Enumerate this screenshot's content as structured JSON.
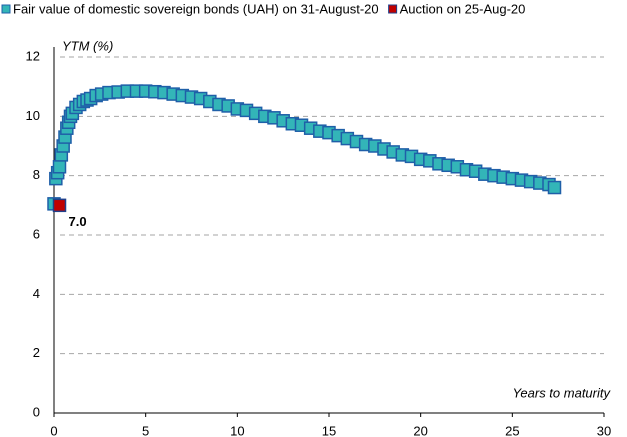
{
  "chart_data": {
    "type": "scatter",
    "ylabel": "YTM (%)",
    "xlabel": "Years to maturity",
    "xlim": [
      0,
      30
    ],
    "xticks": [
      0,
      5,
      10,
      15,
      20,
      25,
      30
    ],
    "ylim": [
      0,
      12
    ],
    "yticks": [
      0,
      2,
      4,
      6,
      8,
      10,
      12
    ],
    "grid": true,
    "legend": "top",
    "series": [
      {
        "name": "Fair value of domestic sovereign bonds (UAH) on 31-August-20",
        "color": "#33b5b8",
        "edge": "#1f5fa8",
        "x": [
          0.0,
          0.1,
          0.2,
          0.3,
          0.4,
          0.5,
          0.6,
          0.7,
          0.8,
          0.9,
          1.0,
          1.2,
          1.4,
          1.6,
          1.8,
          2.0,
          2.3,
          2.6,
          3.0,
          3.5,
          4.0,
          4.5,
          5.0,
          5.5,
          6.0,
          6.5,
          7.0,
          7.5,
          8.0,
          8.5,
          9.0,
          9.5,
          10.0,
          10.5,
          11.0,
          11.5,
          12.0,
          12.5,
          13.0,
          13.5,
          14.0,
          14.5,
          15.0,
          15.5,
          16.0,
          16.5,
          17.0,
          17.5,
          18.0,
          18.5,
          19.0,
          19.5,
          20.0,
          20.5,
          21.0,
          21.5,
          22.0,
          22.5,
          23.0,
          23.5,
          24.0,
          24.5,
          25.0,
          25.5,
          26.0,
          26.5,
          27.0,
          27.3
        ],
        "values": [
          7.05,
          7.9,
          8.1,
          8.3,
          8.7,
          9.0,
          9.3,
          9.6,
          9.8,
          10.0,
          10.1,
          10.3,
          10.4,
          10.5,
          10.55,
          10.6,
          10.7,
          10.75,
          10.8,
          10.82,
          10.85,
          10.85,
          10.85,
          10.83,
          10.8,
          10.75,
          10.7,
          10.65,
          10.6,
          10.5,
          10.4,
          10.35,
          10.25,
          10.2,
          10.1,
          10.0,
          9.95,
          9.85,
          9.75,
          9.7,
          9.6,
          9.5,
          9.45,
          9.35,
          9.25,
          9.15,
          9.05,
          9.0,
          8.9,
          8.8,
          8.7,
          8.65,
          8.55,
          8.5,
          8.4,
          8.35,
          8.3,
          8.2,
          8.15,
          8.05,
          8.0,
          7.95,
          7.9,
          7.85,
          7.8,
          7.75,
          7.7,
          7.6
        ]
      },
      {
        "name": "Auction on 25-Aug-20",
        "color": "#c00000",
        "edge": "#1f3f8a",
        "x": [
          0.3
        ],
        "values": [
          7.0
        ],
        "value_labels": [
          "7.0"
        ]
      }
    ]
  }
}
